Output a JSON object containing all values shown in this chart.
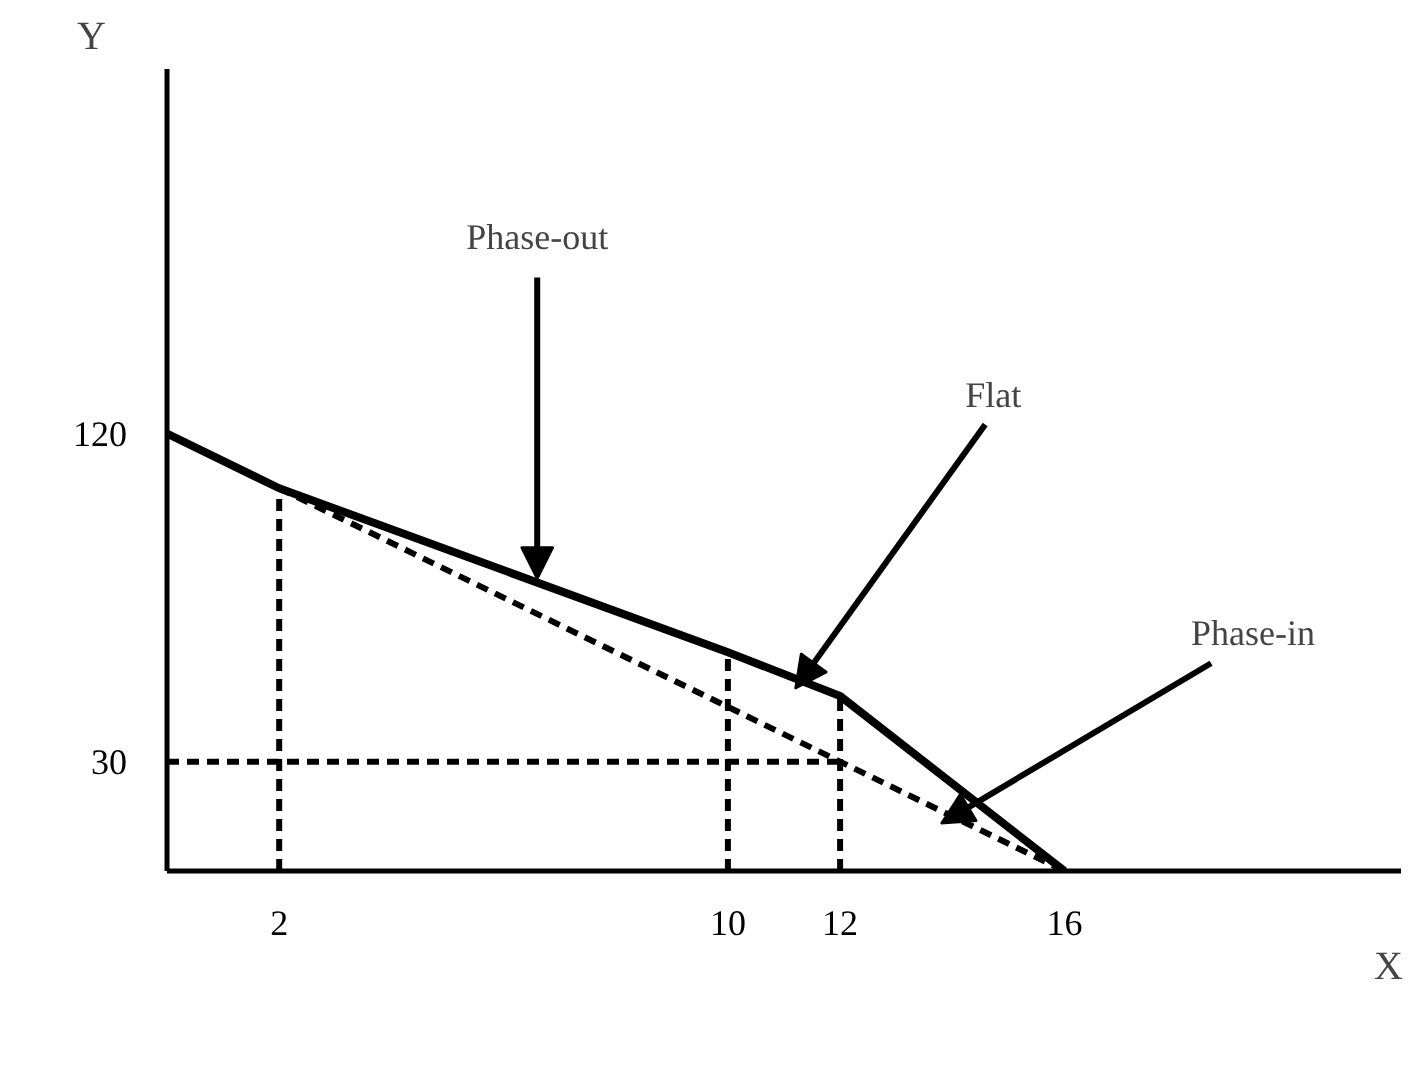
{
  "chart_data": {
    "type": "line",
    "xlabel": "X",
    "ylabel": "Y",
    "xlim": [
      0,
      22
    ],
    "ylim": [
      0,
      220
    ],
    "xticks": [
      2,
      10,
      12,
      16
    ],
    "yticks": [
      30,
      120
    ],
    "grid": false,
    "marker": "none",
    "series": [
      {
        "color": "#000000",
        "line_style": "solid",
        "x": [
          0,
          2,
          10,
          12,
          16
        ],
        "values": [
          120,
          105,
          60,
          48,
          0
        ]
      },
      {
        "color": "#000000",
        "line_style": "dashed",
        "x": [
          2,
          16
        ],
        "values": [
          105,
          0
        ]
      },
      {
        "color": "#000000",
        "line_style": "dashed",
        "x": [
          2,
          2
        ],
        "values": [
          0,
          105
        ]
      },
      {
        "color": "#000000",
        "line_style": "dashed",
        "x": [
          10,
          10
        ],
        "values": [
          0,
          60
        ]
      },
      {
        "color": "#000000",
        "line_style": "dashed",
        "x": [
          12,
          12
        ],
        "values": [
          0,
          48
        ]
      },
      {
        "color": "#000000",
        "line_style": "dashed",
        "x": [
          0,
          12
        ],
        "values": [
          30,
          30
        ]
      }
    ],
    "annotations": [
      {
        "text": "Phase-out",
        "x": 6.6,
        "y": 80
      },
      {
        "text": "Flat",
        "x": 11.2,
        "y": 50
      },
      {
        "text": "Phase-in",
        "x": 13.8,
        "y": 13
      }
    ]
  }
}
